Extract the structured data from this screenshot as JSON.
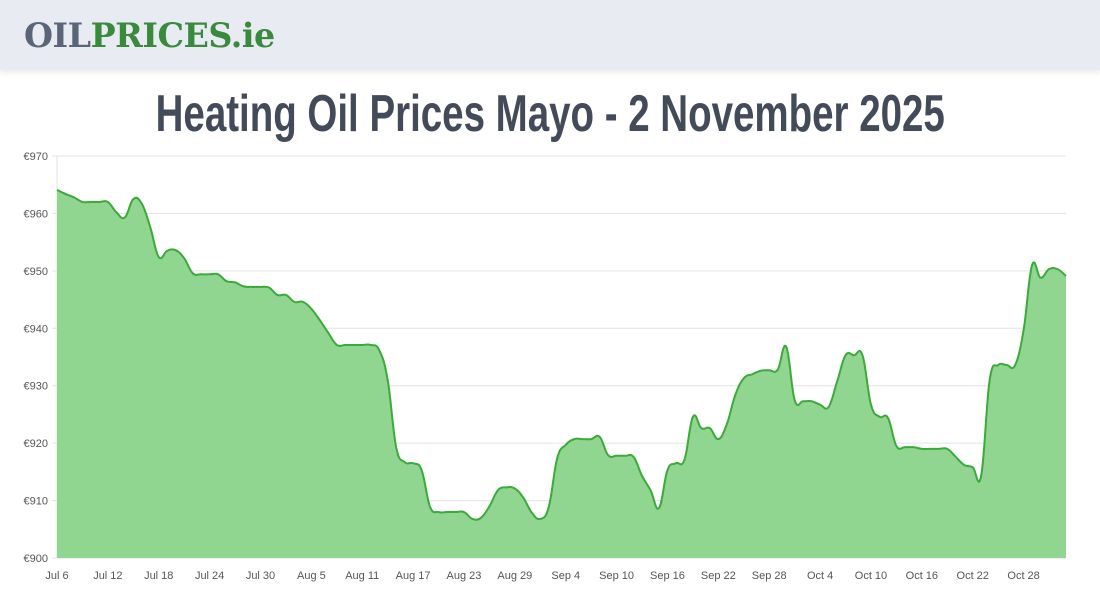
{
  "header": {
    "logo_part1": "OIL",
    "logo_part2": "PRICES.ie",
    "logo_colors": {
      "part1": "#5a6577",
      "part2": "#3a8a3e"
    },
    "background": "#e9ebf2"
  },
  "page": {
    "title": "Heating Oil Prices Mayo - 2 November 2025"
  },
  "chart_data": {
    "type": "area",
    "title": "Heating Oil Prices Mayo - 2 November 2025",
    "xlabel": "",
    "ylabel": "",
    "currency": "€",
    "ylim": [
      900,
      970
    ],
    "y_ticks": [
      "€970",
      "€960",
      "€950",
      "€940",
      "€930",
      "€920",
      "€910",
      "€900"
    ],
    "y_tick_values": [
      970,
      960,
      950,
      940,
      930,
      920,
      910,
      900
    ],
    "x_tick_labels": [
      "Jul 6",
      "Jul 12",
      "Jul 18",
      "Jul 24",
      "Jul 30",
      "Aug 5",
      "Aug 11",
      "Aug 17",
      "Aug 23",
      "Aug 29",
      "Sep 4",
      "Sep 10",
      "Sep 16",
      "Sep 22",
      "Sep 28",
      "Oct 4",
      "Oct 10",
      "Oct 16",
      "Oct 22",
      "Oct 28"
    ],
    "grid": true,
    "legend": null,
    "colors": {
      "line": "#3aaa3a",
      "fill": "#90d590"
    },
    "start_date": "Jul 6",
    "end_date": "Nov 2",
    "x": [
      "Jul 6",
      "Jul 7",
      "Jul 8",
      "Jul 9",
      "Jul 10",
      "Jul 11",
      "Jul 12",
      "Jul 13",
      "Jul 14",
      "Jul 15",
      "Jul 16",
      "Jul 17",
      "Jul 18",
      "Jul 19",
      "Jul 20",
      "Jul 21",
      "Jul 22",
      "Jul 23",
      "Jul 24",
      "Jul 25",
      "Jul 26",
      "Jul 27",
      "Jul 28",
      "Jul 29",
      "Jul 30",
      "Jul 31",
      "Aug 1",
      "Aug 2",
      "Aug 3",
      "Aug 4",
      "Aug 5",
      "Aug 6",
      "Aug 7",
      "Aug 8",
      "Aug 9",
      "Aug 10",
      "Aug 11",
      "Aug 12",
      "Aug 13",
      "Aug 14",
      "Aug 15",
      "Aug 16",
      "Aug 17",
      "Aug 18",
      "Aug 19",
      "Aug 20",
      "Aug 21",
      "Aug 22",
      "Aug 23",
      "Aug 24",
      "Aug 25",
      "Aug 26",
      "Aug 27",
      "Aug 28",
      "Aug 29",
      "Aug 30",
      "Aug 31",
      "Sep 1",
      "Sep 2",
      "Sep 3",
      "Sep 4",
      "Sep 5",
      "Sep 6",
      "Sep 7",
      "Sep 8",
      "Sep 9",
      "Sep 10",
      "Sep 11",
      "Sep 12",
      "Sep 13",
      "Sep 14",
      "Sep 15",
      "Sep 16",
      "Sep 17",
      "Sep 18",
      "Sep 19",
      "Sep 20",
      "Sep 21",
      "Sep 22",
      "Sep 23",
      "Sep 24",
      "Sep 25",
      "Sep 26",
      "Sep 27",
      "Sep 28",
      "Sep 29",
      "Sep 30",
      "Oct 1",
      "Oct 2",
      "Oct 3",
      "Oct 4",
      "Oct 5",
      "Oct 6",
      "Oct 7",
      "Oct 8",
      "Oct 9",
      "Oct 10",
      "Oct 11",
      "Oct 12",
      "Oct 13",
      "Oct 14",
      "Oct 15",
      "Oct 16",
      "Oct 17",
      "Oct 18",
      "Oct 19",
      "Oct 20",
      "Oct 21",
      "Oct 22",
      "Oct 23",
      "Oct 24",
      "Oct 25",
      "Oct 26",
      "Oct 27",
      "Oct 28",
      "Oct 29",
      "Oct 30",
      "Oct 31",
      "Nov 1",
      "Nov 2"
    ],
    "values": [
      964.1,
      963.4,
      962.8,
      962.0,
      962.0,
      962.0,
      962.0,
      960.2,
      959.3,
      962.5,
      961.7,
      957.6,
      952.4,
      953.5,
      953.6,
      952.2,
      949.6,
      949.4,
      949.4,
      949.4,
      948.2,
      948.0,
      947.3,
      947.2,
      947.2,
      947.1,
      945.8,
      945.8,
      944.6,
      944.6,
      943.4,
      941.4,
      939.2,
      937.1,
      937.1,
      937.1,
      937.1,
      937.1,
      936.2,
      931.0,
      919.3,
      916.7,
      916.5,
      915.3,
      908.9,
      908.0,
      908.0,
      908.0,
      908.0,
      906.8,
      907.0,
      909.0,
      911.8,
      912.3,
      912.1,
      910.5,
      907.9,
      906.8,
      908.9,
      917.4,
      919.7,
      920.7,
      920.7,
      920.7,
      921.1,
      917.9,
      917.8,
      917.8,
      917.6,
      914.3,
      911.8,
      908.7,
      915.3,
      916.5,
      917.1,
      924.6,
      922.6,
      922.6,
      920.7,
      923.3,
      928.4,
      931.3,
      932.0,
      932.6,
      932.7,
      932.8,
      936.8,
      927.5,
      927.3,
      927.3,
      926.7,
      926.3,
      930.7,
      935.3,
      935.3,
      935.3,
      926.7,
      924.6,
      924.4,
      919.5,
      919.3,
      919.3,
      919.0,
      919.0,
      919.0,
      919.0,
      917.6,
      916.2,
      915.8,
      914.4,
      931.0,
      933.6,
      933.6,
      933.6,
      939.7,
      951.0,
      948.8,
      950.3,
      950.3,
      949.1
    ]
  }
}
